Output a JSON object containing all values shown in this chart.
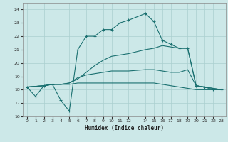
{
  "xlabel": "Humidex (Indice chaleur)",
  "background_color": "#cce8e8",
  "grid_color": "#aacfcf",
  "line_color": "#1a7070",
  "xlim": [
    -0.5,
    23.5
  ],
  "ylim": [
    16,
    24.5
  ],
  "yticks": [
    16,
    17,
    18,
    19,
    20,
    21,
    22,
    23,
    24
  ],
  "xticks": [
    0,
    1,
    2,
    3,
    4,
    5,
    6,
    7,
    8,
    9,
    10,
    11,
    12,
    14,
    15,
    16,
    17,
    18,
    19,
    20,
    21,
    22,
    23
  ],
  "xtick_labels": [
    "0",
    "1",
    "2",
    "3",
    "4",
    "5",
    "6",
    "7",
    "8",
    "9",
    "10",
    "11",
    "12",
    "14",
    "15",
    "16",
    "17",
    "18",
    "19",
    "20",
    "21",
    "22",
    "23"
  ],
  "series1_x": [
    0,
    1,
    2,
    3,
    4,
    5,
    6,
    7,
    8,
    9,
    10,
    11,
    12,
    14,
    15,
    16,
    17,
    18,
    19,
    20,
    21,
    22,
    23
  ],
  "series1_y": [
    18.2,
    17.5,
    18.3,
    18.4,
    17.2,
    16.4,
    21.0,
    22.0,
    22.0,
    22.5,
    22.5,
    23.0,
    23.2,
    23.7,
    23.1,
    21.7,
    21.4,
    21.1,
    21.1,
    18.3,
    18.2,
    18.0,
    18.0
  ],
  "series2_x": [
    0,
    2,
    3,
    4,
    5,
    6,
    7,
    8,
    9,
    10,
    11,
    12,
    14,
    15,
    16,
    17,
    18,
    19,
    20,
    21,
    22,
    23
  ],
  "series2_y": [
    18.2,
    18.3,
    18.4,
    18.4,
    18.4,
    18.5,
    18.5,
    18.5,
    18.5,
    18.5,
    18.5,
    18.5,
    18.5,
    18.5,
    18.4,
    18.3,
    18.2,
    18.1,
    18.0,
    18.0,
    18.0,
    18.0
  ],
  "series3_x": [
    0,
    2,
    3,
    4,
    5,
    6,
    7,
    8,
    9,
    10,
    11,
    12,
    14,
    15,
    16,
    17,
    18,
    19,
    20,
    21,
    22,
    23
  ],
  "series3_y": [
    18.2,
    18.3,
    18.4,
    18.4,
    18.5,
    18.9,
    19.1,
    19.2,
    19.3,
    19.4,
    19.4,
    19.4,
    19.5,
    19.5,
    19.4,
    19.3,
    19.3,
    19.5,
    18.3,
    18.2,
    18.1,
    18.0
  ],
  "series4_x": [
    0,
    2,
    3,
    4,
    5,
    6,
    7,
    8,
    9,
    10,
    11,
    12,
    14,
    15,
    16,
    17,
    18,
    19,
    20,
    21,
    22,
    23
  ],
  "series4_y": [
    18.2,
    18.3,
    18.4,
    18.4,
    18.5,
    18.8,
    19.3,
    19.8,
    20.2,
    20.5,
    20.6,
    20.7,
    21.0,
    21.1,
    21.3,
    21.2,
    21.1,
    21.1,
    18.3,
    18.2,
    18.1,
    18.0
  ]
}
